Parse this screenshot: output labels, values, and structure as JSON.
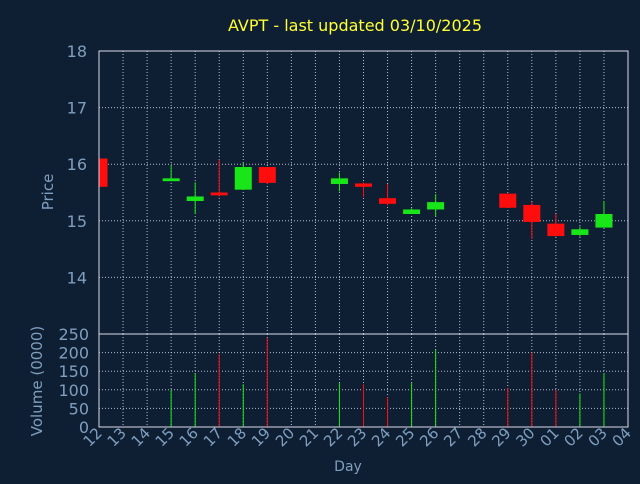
{
  "chart_data": {
    "type": "candlestick",
    "title": "AVPT - last updated 03/10/2025",
    "xlabel": "Day",
    "x_ticks": [
      "12",
      "13",
      "14",
      "15",
      "16",
      "17",
      "18",
      "19",
      "20",
      "21",
      "22",
      "23",
      "24",
      "25",
      "26",
      "27",
      "28",
      "29",
      "30",
      "01",
      "02",
      "03",
      "04"
    ],
    "price_panel": {
      "ylabel": "Price",
      "ylim": [
        13.0,
        18.0
      ],
      "y_ticks": [
        "14",
        "15",
        "16",
        "17",
        "18"
      ],
      "grid": true
    },
    "volume_panel": {
      "ylabel": "Volume (0000)",
      "ylim": [
        0,
        250
      ],
      "y_ticks": [
        "0",
        "50",
        "100",
        "150",
        "200",
        "250"
      ],
      "grid": true
    },
    "candles": [
      {
        "day": "12",
        "open": 16.1,
        "high": 16.1,
        "low": 15.6,
        "close": 15.6,
        "volume": 0
      },
      {
        "day": "15",
        "open": 15.7,
        "high": 15.98,
        "low": 15.7,
        "close": 15.75,
        "volume": 100
      },
      {
        "day": "16",
        "open": 15.35,
        "high": 15.68,
        "low": 15.12,
        "close": 15.43,
        "volume": 145
      },
      {
        "day": "17",
        "open": 15.5,
        "high": 16.08,
        "low": 15.43,
        "close": 15.45,
        "volume": 195
      },
      {
        "day": "18",
        "open": 15.55,
        "high": 16.03,
        "low": 15.55,
        "close": 15.95,
        "volume": 115
      },
      {
        "day": "19",
        "open": 15.95,
        "high": 15.95,
        "low": 15.65,
        "close": 15.67,
        "volume": 240
      },
      {
        "day": "22",
        "open": 15.65,
        "high": 15.85,
        "low": 15.52,
        "close": 15.75,
        "volume": 118
      },
      {
        "day": "23",
        "open": 15.66,
        "high": 15.68,
        "low": 15.42,
        "close": 15.6,
        "volume": 115
      },
      {
        "day": "24",
        "open": 15.4,
        "high": 15.65,
        "low": 15.27,
        "close": 15.3,
        "volume": 80
      },
      {
        "day": "25",
        "open": 15.12,
        "high": 15.22,
        "low": 15.12,
        "close": 15.2,
        "volume": 118
      },
      {
        "day": "26",
        "open": 15.2,
        "high": 15.47,
        "low": 15.08,
        "close": 15.33,
        "volume": 208
      },
      {
        "day": "29",
        "open": 15.48,
        "high": 15.48,
        "low": 15.23,
        "close": 15.23,
        "volume": 105
      },
      {
        "day": "30",
        "open": 15.28,
        "high": 15.33,
        "low": 14.68,
        "close": 14.98,
        "volume": 200
      },
      {
        "day": "01",
        "open": 14.95,
        "high": 15.12,
        "low": 14.72,
        "close": 14.73,
        "volume": 100
      },
      {
        "day": "02",
        "open": 14.75,
        "high": 14.9,
        "low": 14.72,
        "close": 14.85,
        "volume": 90
      },
      {
        "day": "03",
        "open": 14.88,
        "high": 15.35,
        "low": 14.88,
        "close": 15.12,
        "volume": 145
      }
    ],
    "colors": {
      "background": "#0f1f33",
      "up": "#19e619",
      "down": "#ff0d0d",
      "title": "#ffff33",
      "axis_text": "#7f9fbf",
      "axis_line": "#d8d8e8",
      "grid": "#cfd8e8"
    }
  }
}
